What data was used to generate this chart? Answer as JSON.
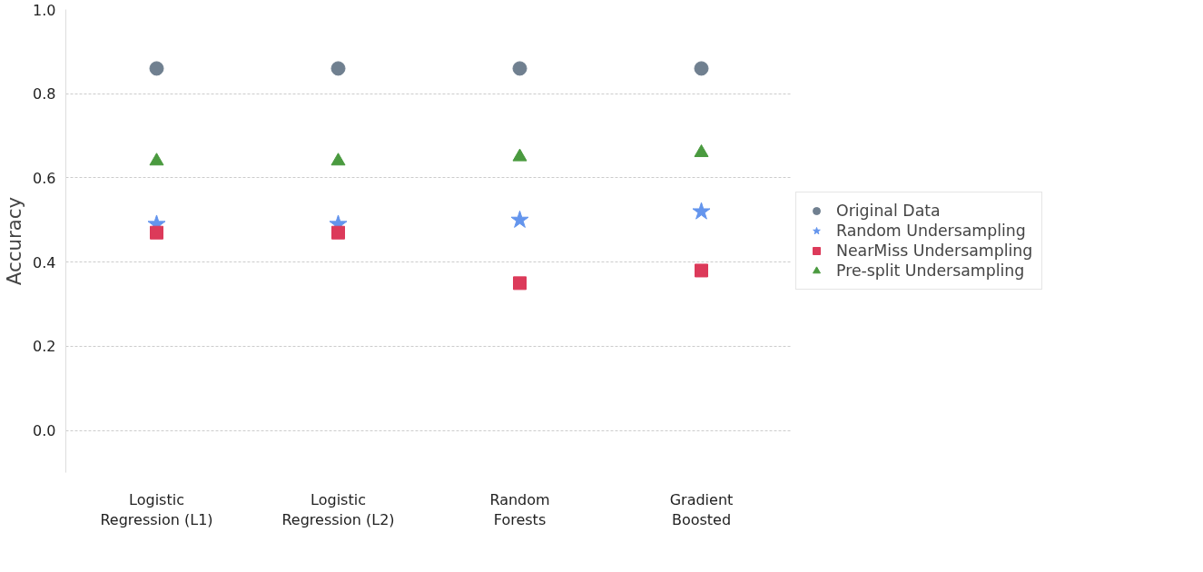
{
  "chart_data": {
    "type": "scatter",
    "ylabel": "Accuracy",
    "categories": [
      "Logistic\nRegression (L1)",
      "Logistic\nRegression (L2)",
      "Random\nForests",
      "Gradient\nBoosted"
    ],
    "series": [
      {
        "name": "Original Data",
        "color": "#708090",
        "marker": "circle",
        "values": [
          0.86,
          0.86,
          0.86,
          0.86
        ]
      },
      {
        "name": "Random Undersampling",
        "color": "#6495ed",
        "marker": "star",
        "values": [
          0.49,
          0.49,
          0.5,
          0.52
        ]
      },
      {
        "name": "NearMiss Undersampling",
        "color": "#dc3a5a",
        "marker": "square",
        "values": [
          0.47,
          0.47,
          0.35,
          0.38
        ]
      },
      {
        "name": "Pre-split Undersampling",
        "color": "#4a9a3f",
        "marker": "triangle",
        "values": [
          0.64,
          0.64,
          0.65,
          0.66
        ]
      }
    ],
    "ylim": [
      -0.1,
      1.0
    ],
    "yticks": [
      {
        "value": 0,
        "label": "0.0"
      },
      0.2,
      0.4,
      0.6,
      0.8,
      {
        "value": 1,
        "label": "1.0"
      }
    ],
    "grid": "y",
    "legend": "right"
  }
}
